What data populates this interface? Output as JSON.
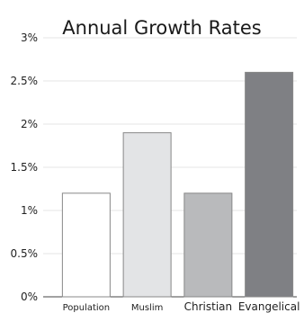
{
  "chart_data": {
    "type": "bar",
    "title": "Annual Growth Rates",
    "xlabel": "",
    "ylabel": "",
    "categories": [
      "Population",
      "Muslim",
      "Christian",
      "Evangelical"
    ],
    "values": [
      1.2,
      1.9,
      1.2,
      2.6
    ],
    "ylim": [
      0,
      3
    ],
    "yticks": [
      "0%",
      "0.5%",
      "1%",
      "1.5%",
      "2%",
      "2.5%",
      "3%"
    ],
    "grid": true,
    "legend": "none",
    "bar_colors": [
      "#ffffff",
      "#e3e4e6",
      "#b9babc",
      "#7f8084"
    ],
    "bar_edge_color": "#888888"
  }
}
